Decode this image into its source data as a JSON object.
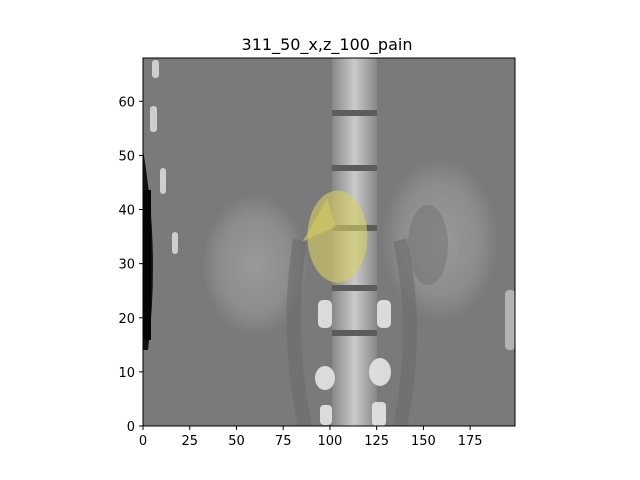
{
  "figure": {
    "title": "311_50_x,z_100_pain",
    "x_ticks": [
      "0",
      "25",
      "50",
      "75",
      "100",
      "125",
      "150",
      "175"
    ],
    "y_ticks": [
      "0",
      "10",
      "20",
      "30",
      "40",
      "50",
      "60"
    ],
    "image_description_icon": "ct-coronal-scan-icon",
    "overlay_color": "#d8d060",
    "background_tone": "#7a7a7a"
  },
  "chart_data": {
    "type": "heatmap",
    "title": "311_50_x,z_100_pain",
    "xlabel": "",
    "ylabel": "",
    "xlim": [
      0,
      199
    ],
    "ylim": [
      0,
      68
    ],
    "x_ticks": [
      0,
      25,
      50,
      75,
      100,
      125,
      150,
      175
    ],
    "y_ticks": [
      0,
      10,
      20,
      30,
      40,
      50,
      60
    ],
    "grid": false,
    "overlay": {
      "shape": "ellipse",
      "center": [
        104,
        35
      ],
      "radius_x": 16,
      "radius_y": 8.5,
      "color": "#d8d060"
    }
  }
}
